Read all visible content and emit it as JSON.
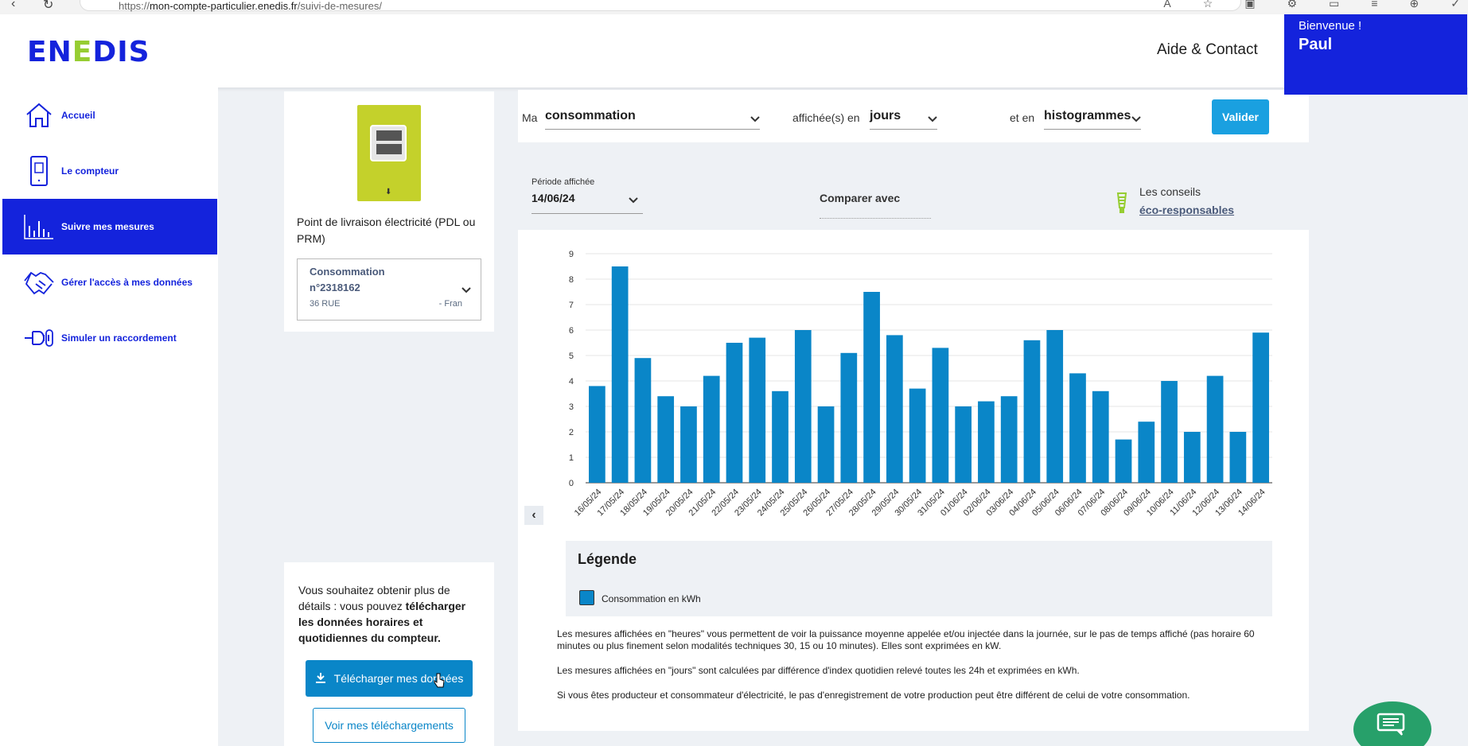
{
  "browser": {
    "url_prefix": "https://",
    "url_host": "mon-compte-particulier.enedis.fr",
    "url_path": "/suivi-de-mesures/"
  },
  "header": {
    "logo_pre": "EN",
    "logo_mid": "E",
    "logo_post": "DIS",
    "help_link": "Aide & Contact",
    "welcome": "Bienvenue !",
    "user_name": "Paul"
  },
  "sidebar": {
    "items": [
      {
        "label": "Accueil",
        "icon": "home-icon"
      },
      {
        "label": "Le compteur",
        "icon": "meter-icon"
      },
      {
        "label": "Suivre mes mesures",
        "icon": "bar-chart-icon"
      },
      {
        "label": "Gérer l'accès à mes données",
        "icon": "handshake-icon"
      },
      {
        "label": "Simuler un raccordement",
        "icon": "plug-icon"
      }
    ]
  },
  "meter": {
    "pdl_title": "Point de livraison électricité (PDL ou PRM)",
    "select_line1": "Consommation",
    "select_line2": "n°2318162",
    "address_left": "36 RUE",
    "address_right": "- Fran"
  },
  "download": {
    "text_normal": "Vous souhaitez obtenir plus de détails : vous pouvez ",
    "text_bold": "télécharger les données horaires et quotidiennes du compteur.",
    "download_button": "Télécharger mes données",
    "view_button": "Voir mes téléchargements"
  },
  "controls": {
    "label_ma": "Ma",
    "measure_type": "consommation",
    "label_affichee": "affichée(s) en",
    "unit": "jours",
    "label_et_en": "et en",
    "chart_kind": "histogrammes",
    "validate_button": "Valider"
  },
  "period": {
    "label": "Période affichée",
    "value": "14/06/24",
    "compare": "Comparer avec",
    "tips_line1": "Les conseils",
    "tips_line2": "éco-responsables"
  },
  "chart_data": {
    "type": "bar",
    "categories": [
      "16/05/24",
      "17/05/24",
      "18/05/24",
      "19/05/24",
      "20/05/24",
      "21/05/24",
      "22/05/24",
      "23/05/24",
      "24/05/24",
      "25/05/24",
      "26/05/24",
      "27/05/24",
      "28/05/24",
      "29/05/24",
      "30/05/24",
      "31/05/24",
      "01/06/24",
      "02/06/24",
      "03/06/24",
      "04/06/24",
      "05/06/24",
      "06/06/24",
      "07/06/24",
      "08/06/24",
      "09/06/24",
      "10/06/24",
      "11/06/24",
      "12/06/24",
      "13/06/24",
      "14/06/24"
    ],
    "values": [
      3.8,
      8.5,
      4.9,
      3.4,
      3.0,
      4.2,
      5.5,
      5.7,
      3.6,
      6.0,
      3.0,
      5.1,
      7.5,
      5.8,
      3.7,
      5.3,
      3.0,
      3.2,
      3.4,
      5.6,
      6.0,
      4.3,
      3.6,
      1.7,
      2.4,
      4.0,
      2.0,
      4.2,
      2.0,
      5.9
    ],
    "ylim": [
      0,
      9
    ],
    "yticks": [
      0,
      1,
      2,
      3,
      4,
      5,
      6,
      7,
      8,
      9
    ],
    "bar_color": "#0a86c8",
    "grid": true
  },
  "legend": {
    "title": "Légende",
    "series_label": "Consommation en kWh"
  },
  "notes": [
    "Les mesures affichées en \"heures\" vous permettent de voir la puissance moyenne appelée et/ou injectée dans la journée, sur le pas de temps affiché (pas horaire 60 minutes ou plus finement selon modalités techniques 30, 15 ou 10 minutes). Elles sont exprimées en kW.",
    "Les mesures affichées en \"jours\" sont calculées par différence d'index quotidien relevé toutes les 24h et exprimées en kWh.",
    "Si vous êtes producteur et consommateur d'électricité, le pas d'enregistrement de votre production peut être différent de celui de votre consommation."
  ],
  "colors": {
    "brand_blue": "#1423dc",
    "brand_green": "#96cd32",
    "action_blue": "#0a86c8",
    "chat_green": "#27a06a"
  }
}
